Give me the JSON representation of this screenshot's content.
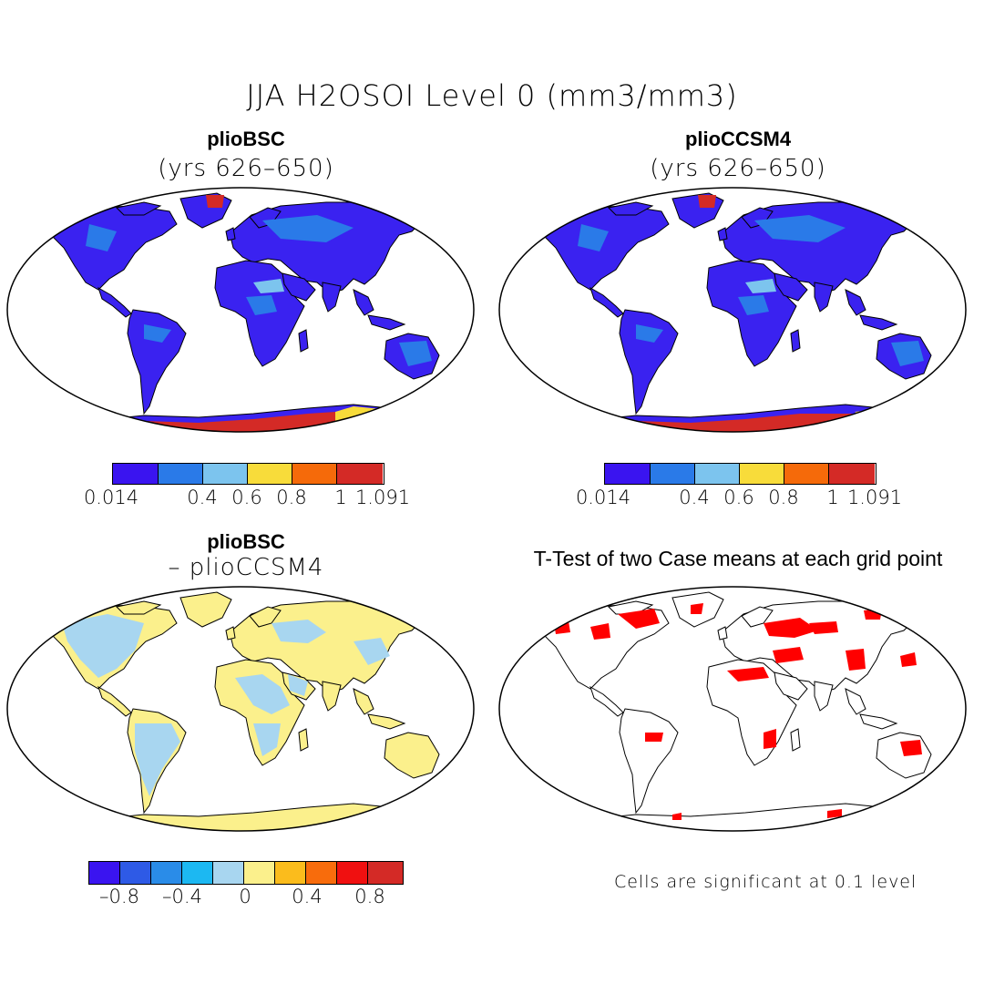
{
  "title": "JJA H2OSOI Level 0 (mm3/mm3)",
  "panels": [
    {
      "title": "plioBSC",
      "subtitle": "(yrs 626–650)"
    },
    {
      "title": "plioCCSM4",
      "subtitle": "(yrs 626–650)"
    },
    {
      "title": "plioBSC",
      "subtitle": "– plioCCSM4"
    },
    {
      "title": "T-Test of two Case means at each grid point",
      "subtitle": ""
    }
  ],
  "colorbar_abs": {
    "colors": [
      "#3a14f0",
      "#2a7ae8",
      "#7cc4ee",
      "#f8dc3a",
      "#f56a0a",
      "#d42a26"
    ],
    "ticks": [
      "0.014",
      "0.4",
      "0.6",
      "0.8",
      "1",
      "1.091"
    ]
  },
  "colorbar_diff": {
    "colors": [
      "#3a14f0",
      "#2e5ae6",
      "#2a8ce8",
      "#1cb8f2",
      "#a8d6f0",
      "#fbf08c",
      "#fbbc1c",
      "#f86c0c",
      "#f01010",
      "#d42a26"
    ],
    "ticks": [
      "–0.8",
      "–0.4",
      "0",
      "0.4",
      "0.8"
    ]
  },
  "ttest_note": "Cells are significant at 0.1 level",
  "ttest_color": "#ff0000"
}
